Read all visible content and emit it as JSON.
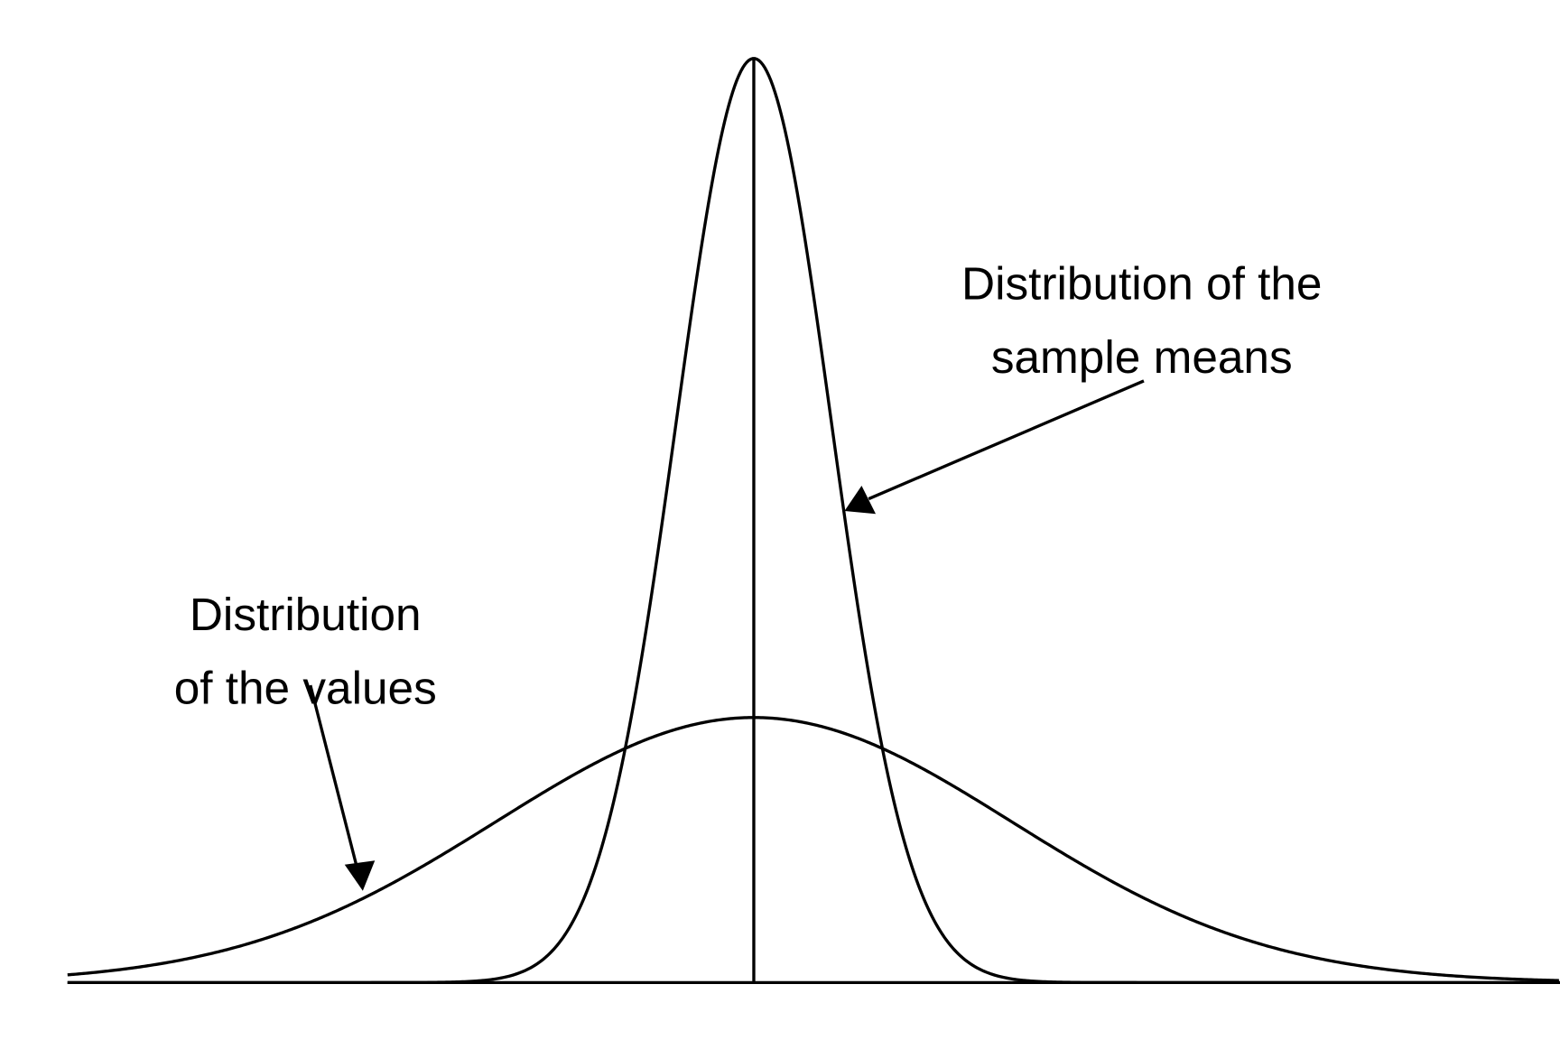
{
  "labels": {
    "sample_means": [
      "Distribution of the",
      "sample means"
    ],
    "values": [
      "Distribution",
      "of the values"
    ]
  }
}
